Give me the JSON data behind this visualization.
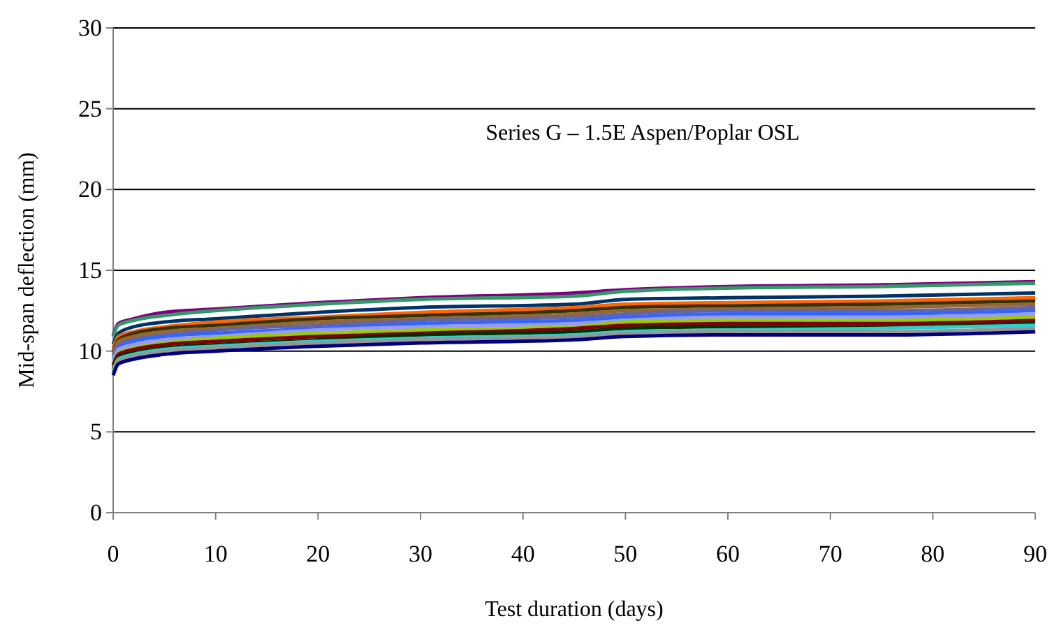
{
  "chart_data": {
    "type": "line",
    "xlabel": "Test duration (days)",
    "ylabel": "Mid-span deflection (mm)",
    "annotations": [
      "Series G – 1.5E Aspen/Poplar OSL"
    ],
    "x": [
      0,
      0.5,
      2,
      5,
      10,
      20,
      30,
      45,
      50,
      60,
      75,
      90
    ],
    "xlim": [
      0,
      90
    ],
    "xticks": [
      0,
      10,
      20,
      30,
      40,
      50,
      60,
      70,
      80,
      90
    ],
    "ylim": [
      0,
      30
    ],
    "yticks": [
      0,
      5,
      10,
      15,
      20,
      25,
      30
    ],
    "grid": "y",
    "series": [
      {
        "color": "#800080",
        "values": [
          11.0,
          11.7,
          12.0,
          12.4,
          12.6,
          13.0,
          13.3,
          13.6,
          13.8,
          14.0,
          14.1,
          14.3
        ]
      },
      {
        "color": "#339966",
        "values": [
          10.9,
          11.6,
          11.9,
          12.2,
          12.5,
          12.9,
          13.2,
          13.4,
          13.7,
          13.9,
          14.0,
          14.2
        ]
      },
      {
        "color": "#003366",
        "values": [
          10.4,
          11.1,
          11.5,
          11.8,
          12.0,
          12.4,
          12.7,
          12.9,
          13.2,
          13.3,
          13.4,
          13.6
        ]
      },
      {
        "color": "#ff6600",
        "values": [
          10.2,
          10.9,
          11.2,
          11.5,
          11.8,
          12.1,
          12.4,
          12.7,
          12.9,
          13.0,
          13.1,
          13.3
        ]
      },
      {
        "color": "#333300",
        "values": [
          10.0,
          10.7,
          11.1,
          11.4,
          11.6,
          12.0,
          12.2,
          12.5,
          12.7,
          12.8,
          12.9,
          13.1
        ]
      },
      {
        "color": "#996633",
        "values": [
          9.9,
          10.6,
          10.9,
          11.2,
          11.4,
          11.8,
          12.0,
          12.3,
          12.5,
          12.6,
          12.7,
          12.9
        ]
      },
      {
        "color": "#666699",
        "values": [
          9.7,
          10.4,
          10.7,
          11.0,
          11.3,
          11.6,
          11.9,
          12.1,
          12.3,
          12.5,
          12.5,
          12.7
        ]
      },
      {
        "color": "#3366ff",
        "values": [
          9.5,
          10.2,
          10.6,
          10.9,
          11.1,
          11.4,
          11.7,
          11.9,
          12.1,
          12.3,
          12.3,
          12.5
        ]
      },
      {
        "color": "#9999ff",
        "values": [
          9.4,
          10.1,
          10.4,
          10.7,
          10.9,
          11.3,
          11.5,
          11.7,
          11.9,
          12.1,
          12.1,
          12.3
        ]
      },
      {
        "color": "#99cc00",
        "values": [
          9.2,
          9.9,
          10.2,
          10.5,
          10.8,
          11.1,
          11.3,
          11.5,
          11.8,
          11.9,
          11.9,
          12.1
        ]
      },
      {
        "color": "#800000",
        "values": [
          9.1,
          9.8,
          10.1,
          10.4,
          10.6,
          10.9,
          11.1,
          11.4,
          11.6,
          11.7,
          11.7,
          11.9
        ]
      },
      {
        "color": "#003300",
        "values": [
          8.9,
          9.6,
          9.9,
          10.2,
          10.4,
          10.7,
          11.0,
          11.2,
          11.4,
          11.5,
          11.5,
          11.7
        ]
      },
      {
        "color": "#33cccc",
        "values": [
          8.8,
          9.5,
          9.8,
          10.1,
          10.3,
          10.6,
          10.8,
          11.0,
          11.2,
          11.3,
          11.4,
          11.6
        ]
      },
      {
        "color": "#969696",
        "values": [
          8.7,
          9.4,
          9.7,
          10.0,
          10.2,
          10.5,
          10.7,
          10.9,
          11.1,
          11.2,
          11.2,
          11.4
        ]
      },
      {
        "color": "#000080",
        "values": [
          8.5,
          9.2,
          9.5,
          9.8,
          10.0,
          10.3,
          10.5,
          10.7,
          10.9,
          11.0,
          11.0,
          11.2
        ]
      }
    ]
  }
}
